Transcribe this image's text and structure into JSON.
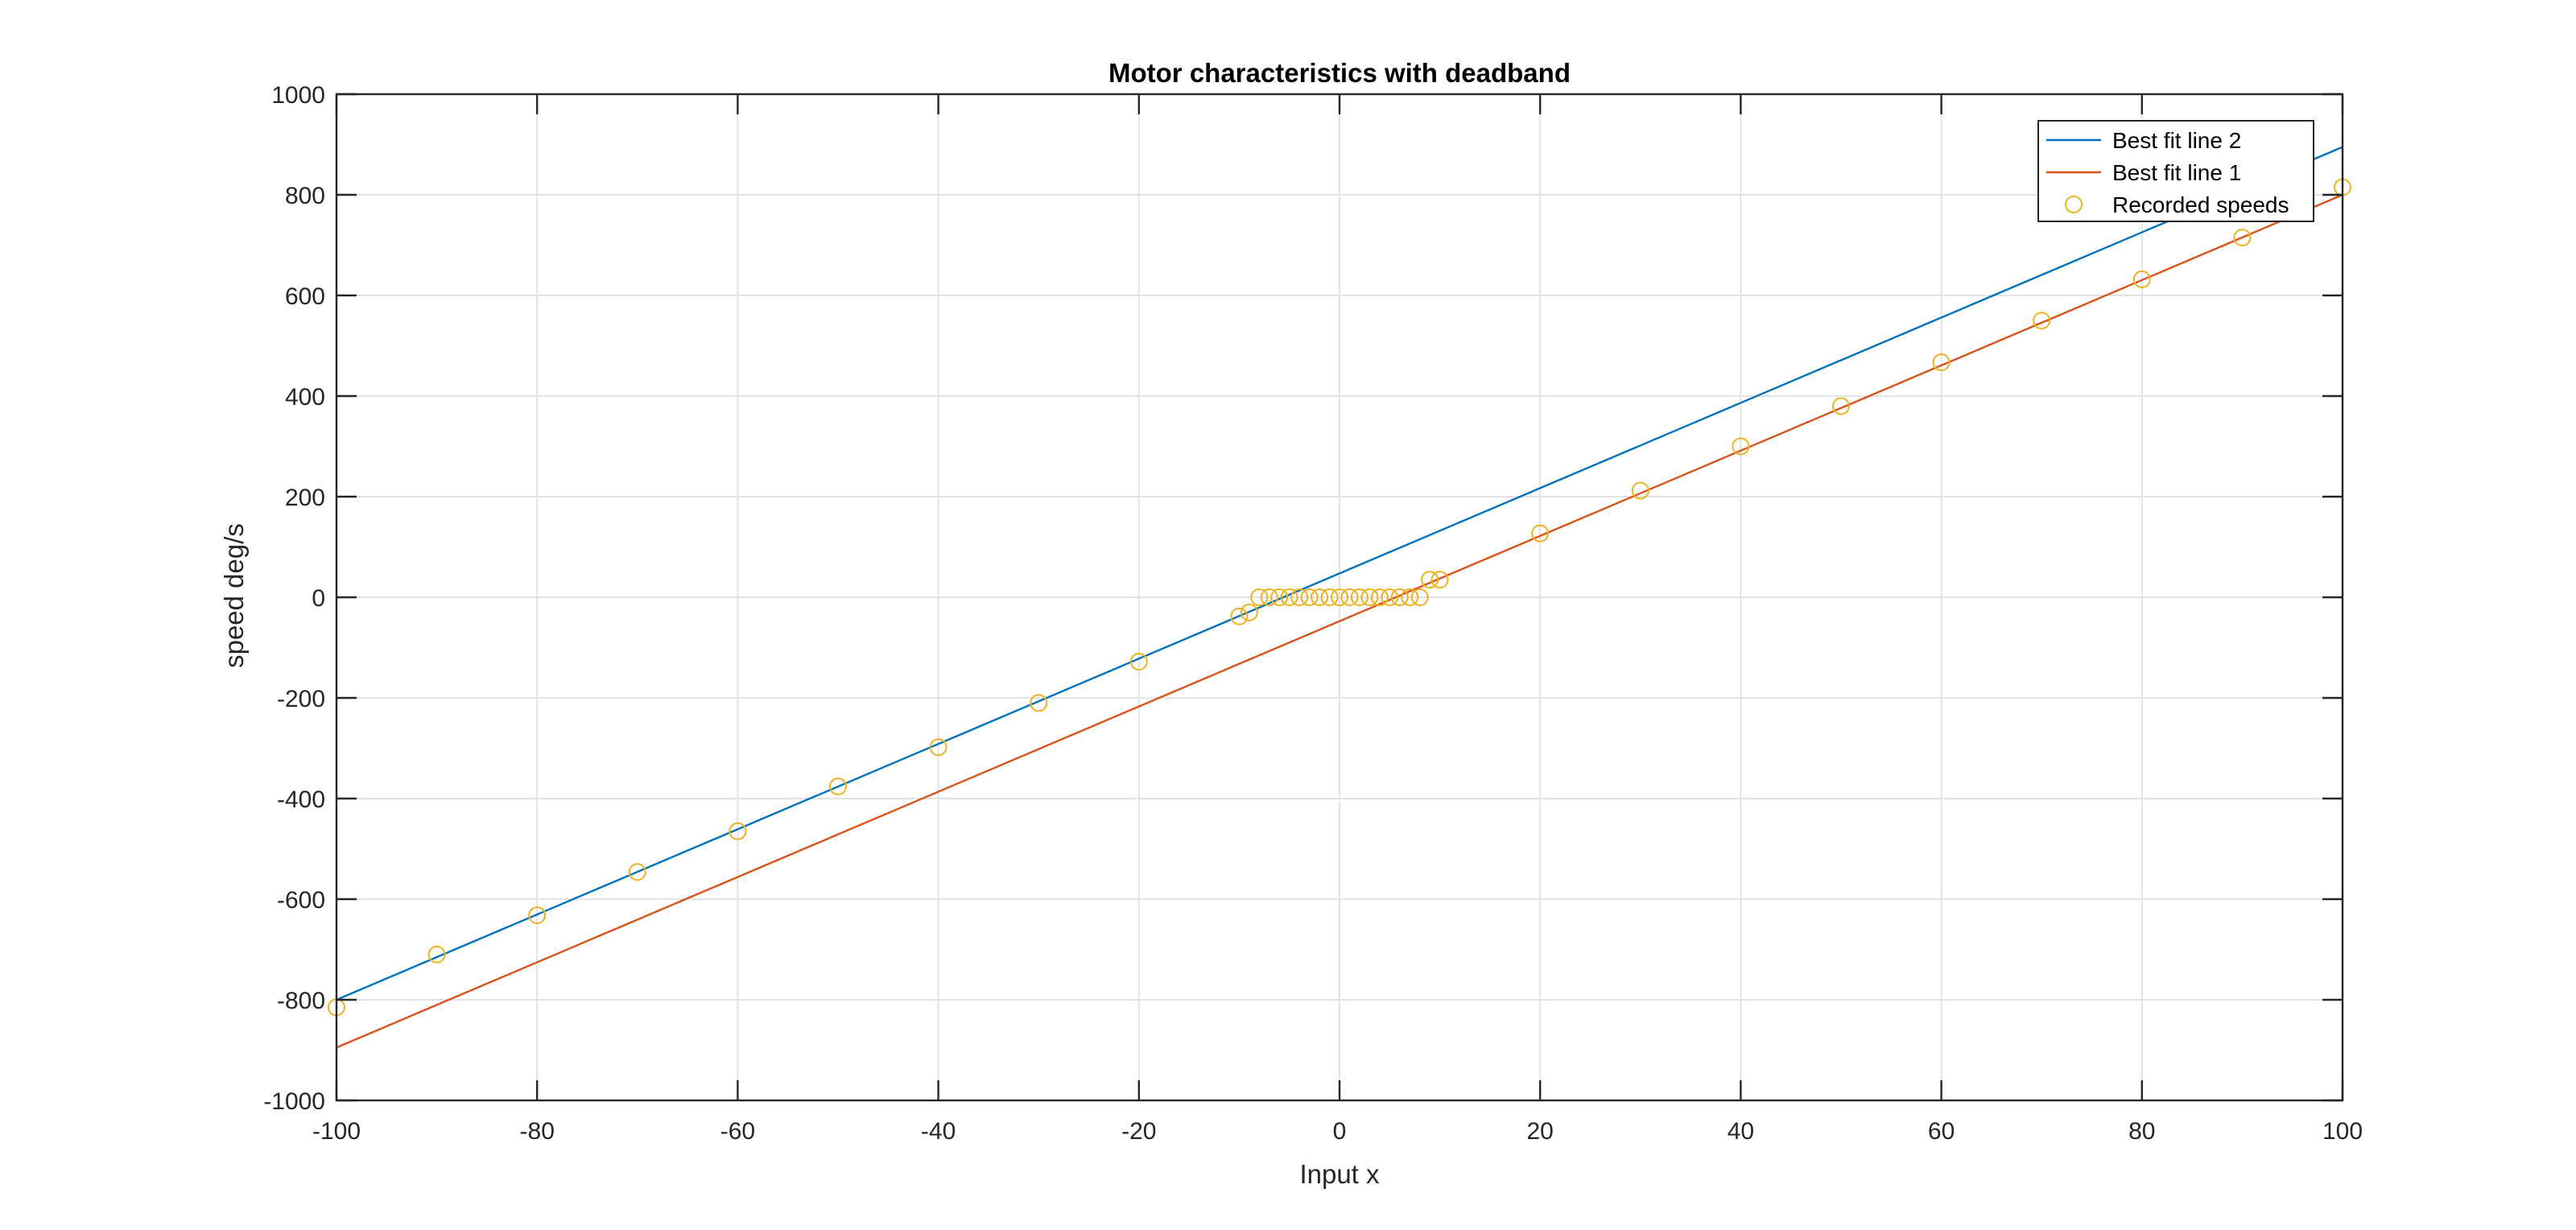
{
  "chart_data": {
    "type": "line",
    "title": "Motor characteristics with deadband",
    "xlabel": "Input x",
    "ylabel": "speed deg/s",
    "xlim": [
      -100,
      100
    ],
    "ylim": [
      -1000,
      1000
    ],
    "xticks": [
      -100,
      -80,
      -60,
      -40,
      -20,
      0,
      20,
      40,
      60,
      80,
      100
    ],
    "yticks": [
      -1000,
      -800,
      -600,
      -400,
      -200,
      0,
      200,
      400,
      600,
      800,
      1000
    ],
    "grid": true,
    "legend_position": "top-right",
    "series": [
      {
        "name": "Best fit line 2",
        "kind": "line",
        "color": "#0072BD",
        "x": [
          -100,
          100
        ],
        "y": [
          -800,
          895
        ]
      },
      {
        "name": "Best fit line 1",
        "kind": "line",
        "color": "#D95319",
        "x": [
          -100,
          100
        ],
        "y": [
          -895,
          800
        ]
      },
      {
        "name": "Recorded speeds",
        "kind": "scatter",
        "marker": "circle",
        "color": "#EDB120",
        "x": [
          -100,
          -90,
          -80,
          -70,
          -60,
          -50,
          -40,
          -30,
          -20,
          -10,
          -9,
          -8,
          -7,
          -6,
          -5,
          -4,
          -3,
          -2,
          -1,
          0,
          1,
          2,
          3,
          4,
          5,
          6,
          7,
          8,
          9,
          10,
          20,
          30,
          40,
          50,
          60,
          70,
          80,
          90,
          100
        ],
        "y": [
          -815,
          -710,
          -632,
          -546,
          -465,
          -376,
          -298,
          -210,
          -128,
          -38,
          -30,
          0,
          0,
          0,
          0,
          0,
          0,
          0,
          0,
          0,
          0,
          0,
          0,
          0,
          0,
          0,
          0,
          0,
          35,
          35,
          127,
          212,
          300,
          380,
          467,
          550,
          632,
          715,
          815
        ]
      }
    ]
  }
}
